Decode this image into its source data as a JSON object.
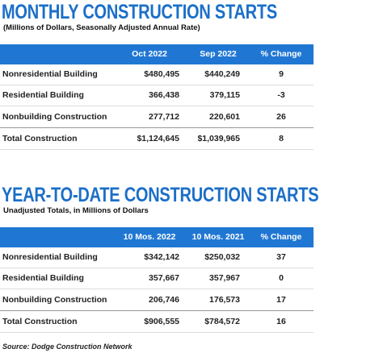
{
  "monthly": {
    "title": "MONTHLY CONSTRUCTION STARTS",
    "subtitle": "(Millions of Dollars, Seasonally Adjusted Annual Rate)",
    "columns": [
      "Oct 2022",
      "Sep 2022",
      "% Change"
    ],
    "rows": [
      [
        "Nonresidential Building",
        "$480,495",
        "$440,249",
        "9"
      ],
      [
        "Residential Building",
        "366,438",
        "379,115",
        "-3"
      ],
      [
        "Nonbuilding Construction",
        "277,712",
        "220,601",
        "26"
      ],
      [
        "Total Construction",
        "$1,124,645",
        "$1,039,965",
        "8"
      ]
    ]
  },
  "ytd": {
    "title": "YEAR-TO-DATE CONSTRUCTION STARTS",
    "subtitle": "Unadjusted Totals, in Millions of Dollars",
    "columns": [
      "10 Mos. 2022",
      "10 Mos. 2021",
      "% Change"
    ],
    "rows": [
      [
        "Nonresidential Building",
        "$342,142",
        "$250,032",
        "37"
      ],
      [
        "Residential Building",
        "357,667",
        "357,967",
        "0"
      ],
      [
        "Nonbuilding Construction",
        "206,746",
        "176,573",
        "17"
      ],
      [
        "Total Construction",
        "$906,555",
        "$784,572",
        "16"
      ]
    ]
  },
  "source": "Source: Dodge Construction Network"
}
